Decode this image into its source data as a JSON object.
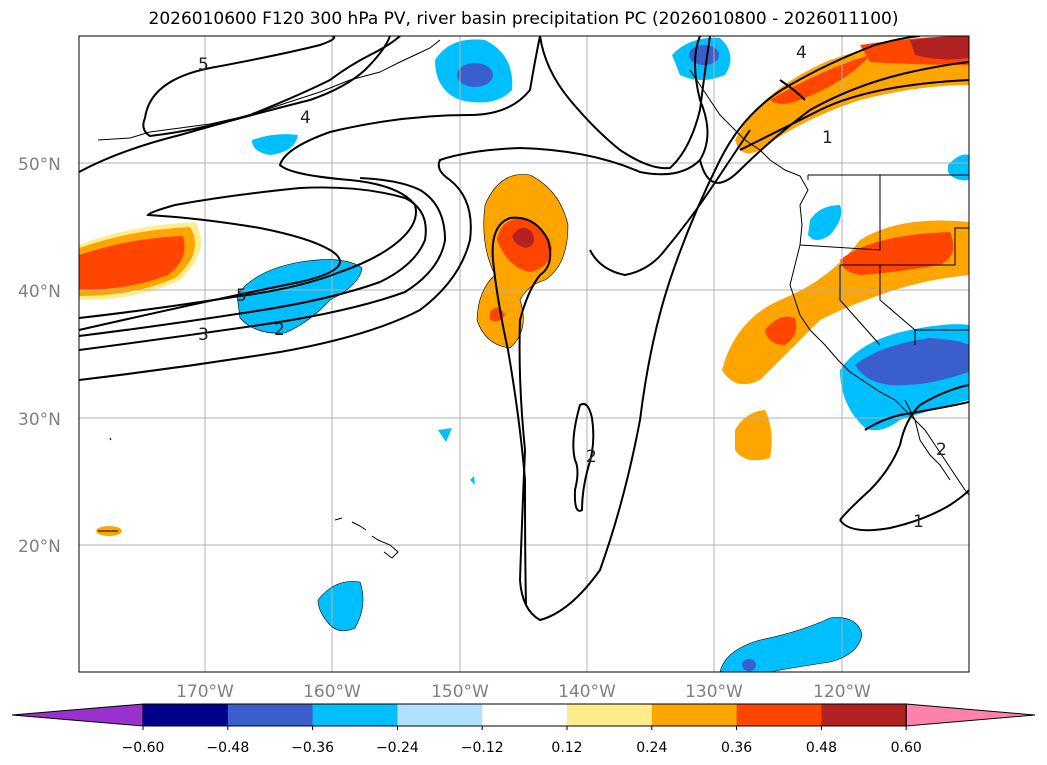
{
  "title": "2026010600 F120 300 hPa PV, river basin precipitation PC (2026010800 - 2026011100)",
  "map": {
    "lon_range": [
      180,
      110
    ],
    "lat_range": [
      10,
      60
    ],
    "lon_ticks": [
      "170°W",
      "160°W",
      "150°W",
      "140°W",
      "130°W",
      "120°W"
    ],
    "lat_ticks": [
      "50°N",
      "40°N",
      "30°N",
      "20°N"
    ],
    "contour_labels": [
      "5",
      "4",
      "5",
      "3",
      "2",
      "2",
      "4",
      "1",
      "2",
      "1"
    ]
  },
  "colorbar": {
    "ticks": [
      "−0.60",
      "−0.48",
      "−0.36",
      "−0.24",
      "−0.12",
      "0.12",
      "0.24",
      "0.36",
      "0.48",
      "0.60"
    ],
    "colors": [
      "#9932cc",
      "#00008b",
      "#3a5fcd",
      "#00bfff",
      "#b0e2ff",
      "#ffffff",
      "#ffec8b",
      "#ffa500",
      "#ff4500",
      "#b22222",
      "#ff82ab"
    ]
  }
}
